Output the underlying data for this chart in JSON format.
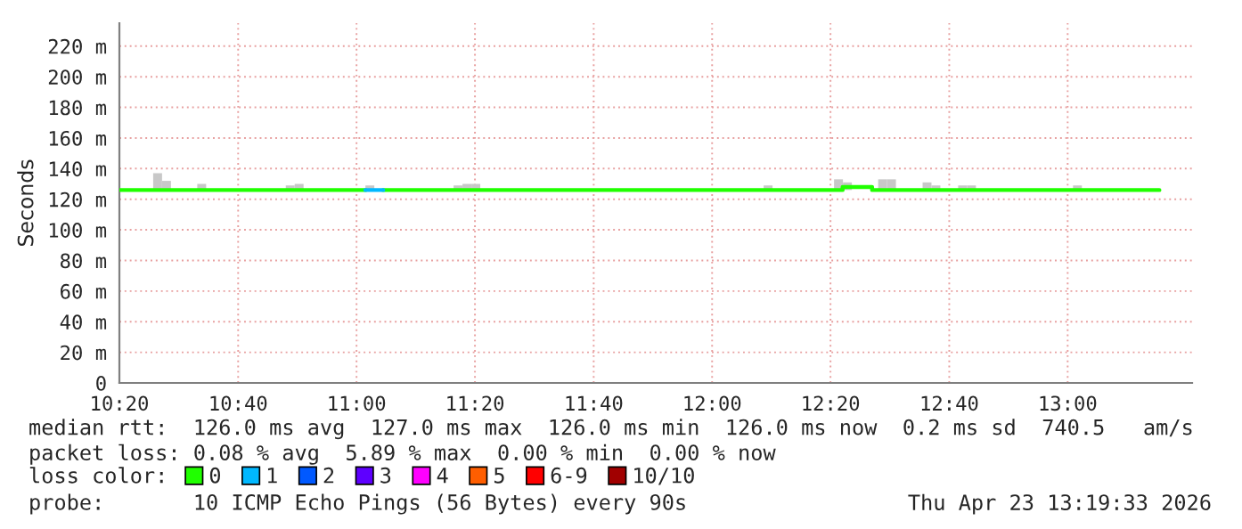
{
  "chart_data": {
    "type": "step",
    "ylabel": "Seconds",
    "xlim": [
      10.333,
      13.35
    ],
    "ylim": [
      0,
      235
    ],
    "xticks": [
      {
        "value": 10.333,
        "label": "10:20"
      },
      {
        "value": 10.667,
        "label": "10:40"
      },
      {
        "value": 11.0,
        "label": "11:00"
      },
      {
        "value": 11.333,
        "label": "11:20"
      },
      {
        "value": 11.667,
        "label": "11:40"
      },
      {
        "value": 12.0,
        "label": "12:00"
      },
      {
        "value": 12.333,
        "label": "12:20"
      },
      {
        "value": 12.667,
        "label": "12:40"
      },
      {
        "value": 13.0,
        "label": "13:00"
      }
    ],
    "yticks": [
      0,
      {
        "value": 20,
        "label": "20 m"
      },
      {
        "value": 40,
        "label": "40 m"
      },
      {
        "value": 60,
        "label": "60 m"
      },
      {
        "value": 80,
        "label": "80 m"
      },
      {
        "value": 100,
        "label": "100 m"
      },
      {
        "value": 120,
        "label": "120 m"
      },
      {
        "value": 140,
        "label": "140 m"
      },
      {
        "value": 160,
        "label": "160 m"
      },
      {
        "value": 180,
        "label": "180 m"
      },
      {
        "value": 200,
        "label": "200 m"
      },
      {
        "value": 220,
        "label": "220 m"
      }
    ],
    "grid": true,
    "legend": "bottom",
    "legend_title": "loss color:",
    "series": [
      {
        "type": "bar",
        "color": "#c8c8c8",
        "x": [
          10.428,
          10.453,
          10.552,
          10.801,
          10.826,
          11.025,
          11.273,
          11.298,
          11.323,
          12.145,
          12.343,
          12.368,
          12.467,
          12.492,
          12.592,
          12.617,
          12.692,
          12.717,
          13.015
        ],
        "base": [
          126,
          126,
          126,
          126,
          126,
          126,
          126,
          126,
          126,
          126,
          126,
          126,
          126,
          126,
          126,
          126,
          126,
          126,
          126
        ],
        "values": [
          11,
          6,
          4,
          3,
          4,
          3,
          3,
          4,
          4,
          3,
          7,
          5,
          7,
          7,
          5,
          3,
          3,
          3,
          3
        ]
      },
      {
        "name": "0",
        "color": "#20ff00",
        "x": [
          10.333,
          11.025,
          11.075,
          12.367,
          12.45,
          13.258
        ],
        "values": [
          126,
          null,
          126,
          128,
          126,
          126
        ]
      },
      {
        "name": "1",
        "color": "#00b8ff",
        "x": [
          11.025,
          11.075
        ],
        "values": [
          126,
          126
        ]
      },
      {
        "name": "2",
        "color": "#0059ff"
      },
      {
        "name": "3",
        "color": "#5e00ff"
      },
      {
        "name": "4",
        "color": "#ff00ff"
      },
      {
        "name": "5",
        "color": "#ff5e00"
      },
      {
        "name": "6-9",
        "color": "#ff0000"
      },
      {
        "name": "10/10",
        "color": "#a10000"
      }
    ],
    "annotations": [
      "median rtt:  126.0 ms avg  127.0 ms max  126.0 ms min  126.0 ms now  0.2 ms sd  740.5   am/s",
      "packet loss: 0.08 % avg  5.89 % max  0.00 % min  0.00 % now",
      "probe:       10 ICMP Echo Pings (56 Bytes) every 90s",
      "Thu Apr 23 13:19:33 2026"
    ]
  }
}
